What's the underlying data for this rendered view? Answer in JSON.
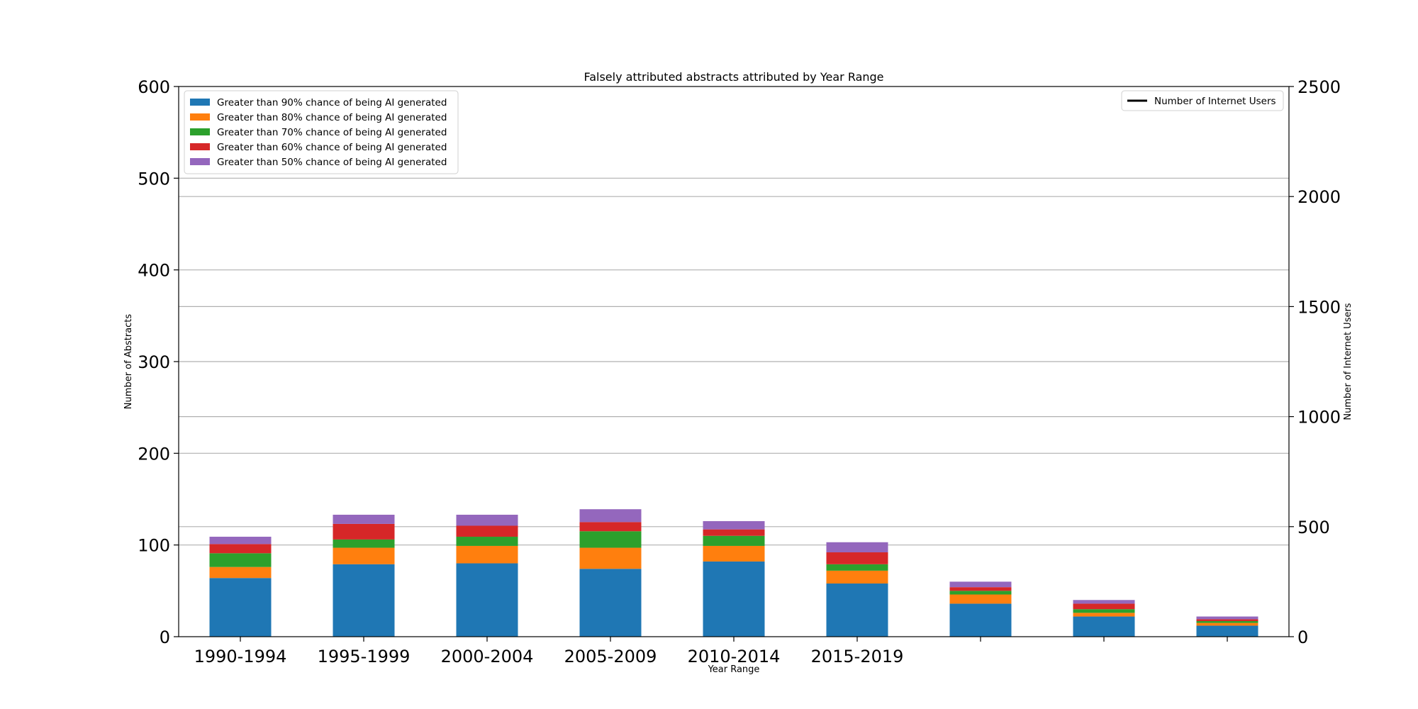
{
  "chart_data": {
    "type": "bar",
    "stacked": true,
    "title": "Falsely attributed abstracts attributed by Year Range",
    "xlabel": "Year Range",
    "ylabel": "Number of Abstracts",
    "y2label": "Number of Internet Users",
    "ylim": [
      0,
      600
    ],
    "y2lim": [
      0,
      2500
    ],
    "yticks": [
      0,
      100,
      200,
      300,
      400,
      500,
      600
    ],
    "y2ticks": [
      0,
      500,
      1000,
      1500,
      2000,
      2500
    ],
    "grid": true,
    "legend_position": "upper left",
    "legend2_position": "upper right",
    "categories": [
      "1990-1994",
      "1995-1999",
      "2000-2004",
      "2005-2009",
      "2010-2014",
      "2015-2019",
      "",
      "",
      ""
    ],
    "series": [
      {
        "name": "Greater than 90% chance of being AI generated",
        "color": "#1f77b4",
        "values": [
          64,
          79,
          80,
          74,
          82,
          58,
          36,
          22,
          12
        ]
      },
      {
        "name": "Greater than 80% chance of being AI generated",
        "color": "#ff7f0e",
        "values": [
          12,
          18,
          19,
          23,
          17,
          14,
          10,
          4,
          3
        ]
      },
      {
        "name": "Greater than 70% chance of being AI generated",
        "color": "#2ca02c",
        "values": [
          15,
          9,
          10,
          18,
          11,
          7,
          4,
          4,
          2
        ]
      },
      {
        "name": "Greater than 60% chance of being AI generated",
        "color": "#d62728",
        "values": [
          10,
          17,
          12,
          10,
          7,
          13,
          4,
          6,
          2
        ]
      },
      {
        "name": "Greater than 50% chance of being AI generated",
        "color": "#9467bd",
        "values": [
          8,
          10,
          12,
          14,
          9,
          11,
          6,
          4,
          3
        ]
      }
    ],
    "line_series": {
      "name": "Number of Internet Users",
      "color": "#000000",
      "y2_gridlines": [
        500,
        1000,
        1500,
        2000
      ]
    }
  }
}
